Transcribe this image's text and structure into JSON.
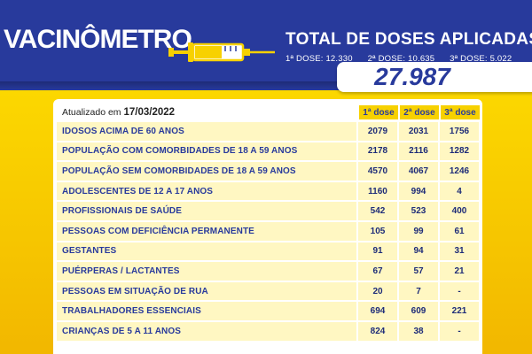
{
  "header": {
    "logo_text": "VACINÔMETRO",
    "title": "TOTAL DE DOSES APLICADAS",
    "dose_summary": [
      {
        "label": "1ª DOSE:",
        "value": "12.330"
      },
      {
        "label": "2ª DOSE:",
        "value": "10.635"
      },
      {
        "label": "3ª DOSE:",
        "value": "5.022"
      }
    ],
    "total": "27.987"
  },
  "table": {
    "updated_label": "Atualizado em",
    "updated_date": "17/03/2022",
    "columns": [
      "1ª dose",
      "2ª dose",
      "3ª dose"
    ],
    "rows": [
      {
        "label": "IDOSOS ACIMA DE 60 ANOS",
        "d1": "2079",
        "d2": "2031",
        "d3": "1756"
      },
      {
        "label": "POPULAÇÃO COM COMORBIDADES DE 18 A 59 ANOS",
        "d1": "2178",
        "d2": "2116",
        "d3": "1282"
      },
      {
        "label": "POPULAÇÃO SEM COMORBIDADES DE 18 A 59 ANOS",
        "d1": "4570",
        "d2": "4067",
        "d3": "1246"
      },
      {
        "label": "ADOLESCENTES DE 12 A 17 ANOS",
        "d1": "1160",
        "d2": "994",
        "d3": "4"
      },
      {
        "label": "PROFISSIONAIS DE SAÚDE",
        "d1": "542",
        "d2": "523",
        "d3": "400"
      },
      {
        "label": "PESSOAS COM DEFICIÊNCIA PERMANENTE",
        "d1": "105",
        "d2": "99",
        "d3": "61"
      },
      {
        "label": "GESTANTES",
        "d1": "91",
        "d2": "94",
        "d3": "31"
      },
      {
        "label": "PUÉRPERAS / LACTANTES",
        "d1": "67",
        "d2": "57",
        "d3": "21"
      },
      {
        "label": "PESSOAS EM SITUAÇÃO DE RUA",
        "d1": "20",
        "d2": "7",
        "d3": "-"
      },
      {
        "label": "TRABALHADORES ESSENCIAIS",
        "d1": "694",
        "d2": "609",
        "d3": "221"
      },
      {
        "label": "CRIANÇAS DE 5 A 11 ANOS",
        "d1": "824",
        "d2": "38",
        "d3": "-"
      }
    ]
  },
  "colors": {
    "brand_blue": "#283a9c",
    "brand_yellow": "#ffe200",
    "row_fill": "#fff7c2"
  }
}
